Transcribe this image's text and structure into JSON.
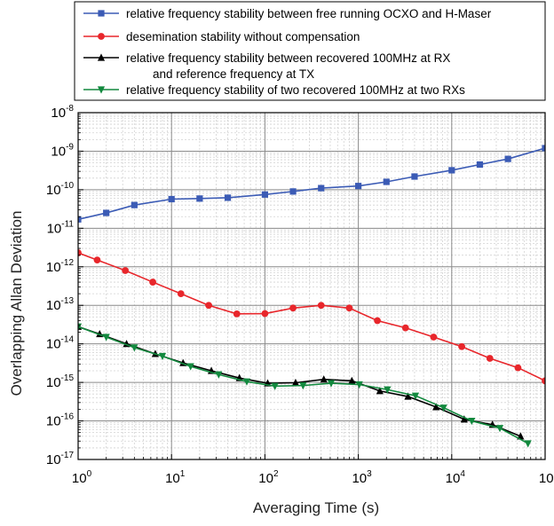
{
  "chart_data": {
    "type": "line",
    "xscale": "log",
    "yscale": "log",
    "xlim": [
      1,
      100000
    ],
    "ylim": [
      1e-17,
      1e-08
    ],
    "xlabel": "Averaging Time (s)",
    "ylabel": "Overlapping Allan Deviation",
    "grid": true,
    "legend_position": "top",
    "x_ticks": [
      {
        "value": 1,
        "base": "10",
        "exp": "0"
      },
      {
        "value": 10,
        "base": "10",
        "exp": "1"
      },
      {
        "value": 100,
        "base": "10",
        "exp": "2"
      },
      {
        "value": 1000,
        "base": "10",
        "exp": "3"
      },
      {
        "value": 10000,
        "base": "10",
        "exp": "4"
      },
      {
        "value": 100000,
        "base": "10",
        "exp": "5"
      }
    ],
    "y_ticks": [
      {
        "value": 1e-17,
        "base": "10",
        "exp": "-17"
      },
      {
        "value": 1e-16,
        "base": "10",
        "exp": "-16"
      },
      {
        "value": 1e-15,
        "base": "10",
        "exp": "-15"
      },
      {
        "value": 1e-14,
        "base": "10",
        "exp": "-14"
      },
      {
        "value": 1e-13,
        "base": "10",
        "exp": "-13"
      },
      {
        "value": 1e-12,
        "base": "10",
        "exp": "-12"
      },
      {
        "value": 1e-11,
        "base": "10",
        "exp": "-11"
      },
      {
        "value": 1e-10,
        "base": "10",
        "exp": "-10"
      },
      {
        "value": 1e-09,
        "base": "10",
        "exp": "-9"
      },
      {
        "value": 1e-08,
        "base": "10",
        "exp": "-8"
      }
    ],
    "series": [
      {
        "name": "relative frequency stability between free running OCXO and H-Maser",
        "color": "#3b5bb5",
        "marker": "square",
        "points": [
          [
            1,
            1.7e-11
          ],
          [
            2,
            2.5e-11
          ],
          [
            4,
            4e-11
          ],
          [
            10,
            5.7e-11
          ],
          [
            20,
            5.9e-11
          ],
          [
            40,
            6.2e-11
          ],
          [
            100,
            7.5e-11
          ],
          [
            200,
            9e-11
          ],
          [
            400,
            1.1e-10
          ],
          [
            1000,
            1.25e-10
          ],
          [
            2000,
            1.6e-10
          ],
          [
            4000,
            2.2e-10
          ],
          [
            10000,
            3.2e-10
          ],
          [
            20000,
            4.5e-10
          ],
          [
            40000,
            6.3e-10
          ],
          [
            100000,
            1.2e-09
          ]
        ]
      },
      {
        "name": "desemination stability without compensation",
        "color": "#e8262b",
        "marker": "circle",
        "points": [
          [
            1,
            2.3e-12
          ],
          [
            1.6,
            1.5e-12
          ],
          [
            3.2,
            8e-13
          ],
          [
            6.3,
            4e-13
          ],
          [
            12.6,
            2e-13
          ],
          [
            25,
            1e-13
          ],
          [
            50,
            6e-14
          ],
          [
            100,
            6.1e-14
          ],
          [
            200,
            8.5e-14
          ],
          [
            400,
            1e-13
          ],
          [
            800,
            8.5e-14
          ],
          [
            1600,
            4e-14
          ],
          [
            3200,
            2.6e-14
          ],
          [
            6400,
            1.5e-14
          ],
          [
            12800,
            8.5e-15
          ],
          [
            25600,
            4.2e-15
          ],
          [
            51200,
            2.4e-15
          ],
          [
            100000,
            1.1e-15
          ]
        ]
      },
      {
        "name": "relative frequency stability between recovered 100MHz at RX",
        "name_line2": "and reference frequency at TX",
        "color": "#000000",
        "marker": "triangle-up",
        "points": [
          [
            1,
            2.8e-14
          ],
          [
            1.7,
            1.8e-14
          ],
          [
            3.3,
            1e-14
          ],
          [
            6.7,
            5.5e-15
          ],
          [
            13.3,
            3.2e-15
          ],
          [
            26.7,
            2e-15
          ],
          [
            53.3,
            1.3e-15
          ],
          [
            107,
            9.5e-16
          ],
          [
            213,
            9.8e-16
          ],
          [
            427,
            1.2e-15
          ],
          [
            853,
            1.1e-15
          ],
          [
            1700,
            6e-16
          ],
          [
            3400,
            4.3e-16
          ],
          [
            6800,
            2.3e-16
          ],
          [
            13600,
            1.1e-16
          ],
          [
            27300,
            8e-17
          ],
          [
            54600,
            4e-17
          ]
        ]
      },
      {
        "name": "relative frequency stability of two recovered 100MHz at two RXs",
        "color": "#12893e",
        "marker": "triangle-down",
        "points": [
          [
            1,
            2.8e-14
          ],
          [
            2,
            1.5e-14
          ],
          [
            4,
            8e-15
          ],
          [
            8,
            4.8e-15
          ],
          [
            16,
            2.6e-15
          ],
          [
            32,
            1.6e-15
          ],
          [
            64,
            1.05e-15
          ],
          [
            128,
            8e-16
          ],
          [
            256,
            8.3e-16
          ],
          [
            512,
            9.5e-16
          ],
          [
            1024,
            8.8e-16
          ],
          [
            2048,
            6.5e-16
          ],
          [
            4096,
            4.5e-16
          ],
          [
            8192,
            2.2e-16
          ],
          [
            16384,
            1e-16
          ],
          [
            32768,
            6.5e-17
          ],
          [
            65536,
            2.6e-17
          ]
        ]
      }
    ]
  }
}
